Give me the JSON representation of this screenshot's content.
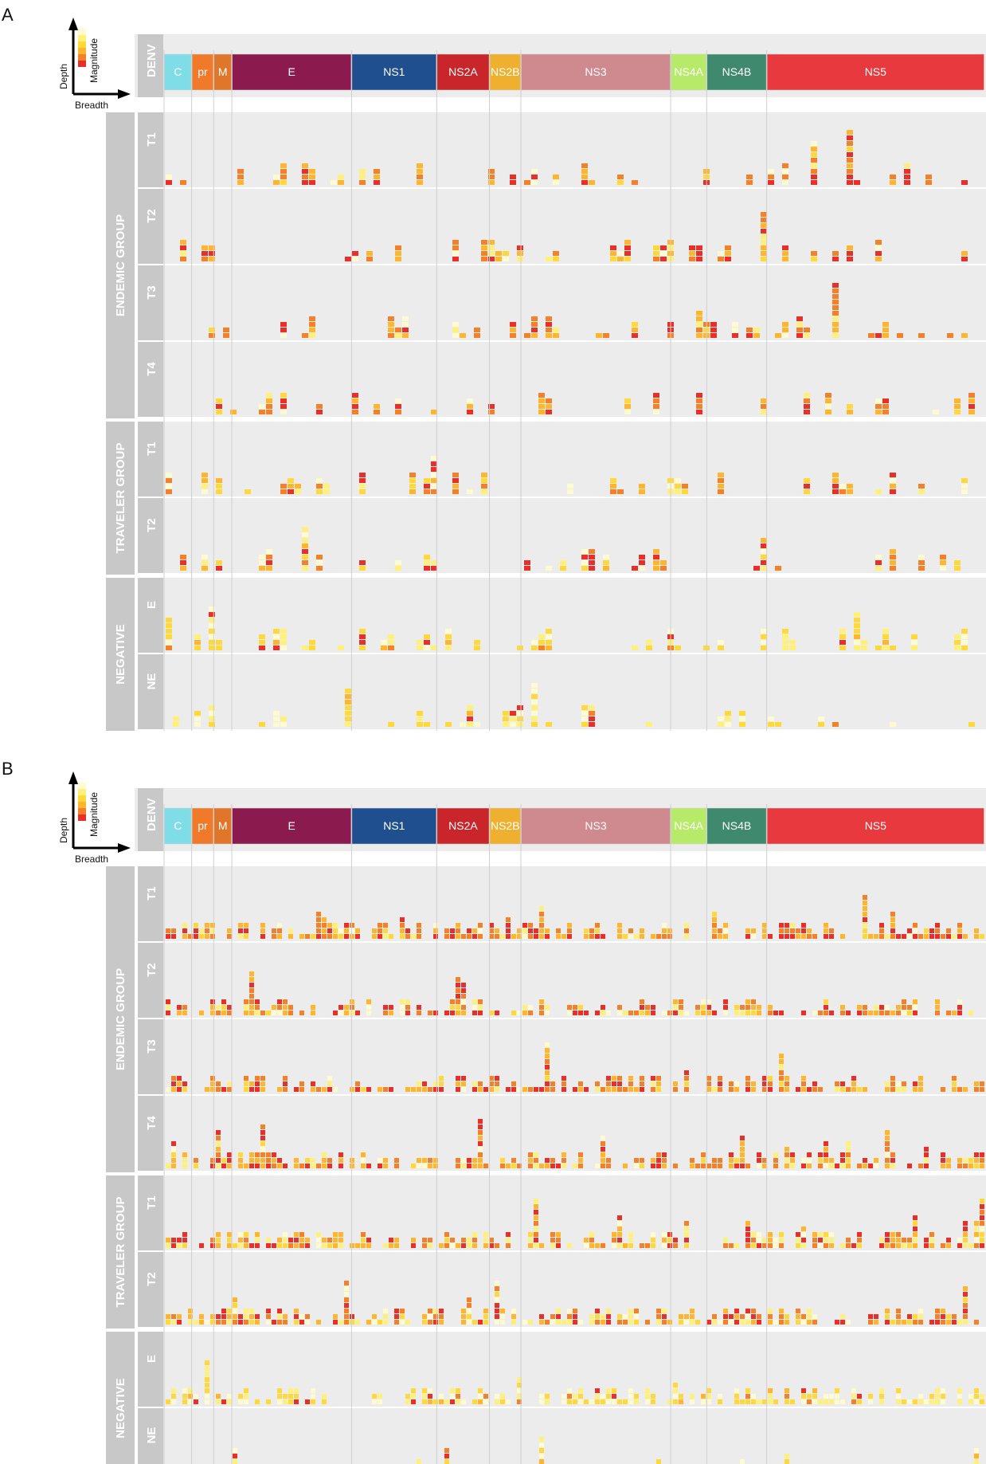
{
  "panels": [
    {
      "letter": "A",
      "header_label": "DENV",
      "seed": 11,
      "groups": [
        {
          "label": "ENDEMIC GROUP",
          "rows": [
            "T1",
            "T2",
            "T3",
            "T4"
          ]
        },
        {
          "label": "TRAVELER GROUP",
          "rows": [
            "T1",
            "T2"
          ]
        },
        {
          "label": "NEGATIVE",
          "rows": [
            "E",
            "NE"
          ]
        }
      ]
    },
    {
      "letter": "B",
      "header_label": "DENV",
      "seed": 47,
      "groups": [
        {
          "label": "ENDEMIC GROUP",
          "rows": [
            "T1",
            "T2",
            "T3",
            "T4"
          ]
        },
        {
          "label": "TRAVELER GROUP",
          "rows": [
            "T1",
            "T2"
          ]
        },
        {
          "label": "NEGATIVE",
          "rows": [
            "E",
            "NE"
          ]
        }
      ]
    }
  ],
  "proteins": [
    {
      "name": "C",
      "start": 0,
      "end": 114,
      "color": "#7fdde8"
    },
    {
      "name": "pr",
      "start": 114,
      "end": 205,
      "color": "#f07a2a"
    },
    {
      "name": "M",
      "start": 205,
      "end": 280,
      "color": "#e0762a"
    },
    {
      "name": "E",
      "start": 280,
      "end": 775,
      "color": "#8b1a4f"
    },
    {
      "name": "NS1",
      "start": 775,
      "end": 1127,
      "color": "#1f4f8f"
    },
    {
      "name": "NS2A",
      "start": 1127,
      "end": 1345,
      "color": "#c8262b"
    },
    {
      "name": "NS2B",
      "start": 1345,
      "end": 1475,
      "color": "#eeb02e"
    },
    {
      "name": "NS3",
      "start": 1475,
      "end": 2094,
      "color": "#cf8a90"
    },
    {
      "name": "NS4A",
      "start": 2094,
      "end": 2243,
      "color": "#b8ea6a"
    },
    {
      "name": "NS4B",
      "start": 2243,
      "end": 2491,
      "color": "#3f8a6f"
    },
    {
      "name": "NS5",
      "start": 2491,
      "end": 3391,
      "color": "#e83a3e"
    }
  ],
  "legend": {
    "y_label": "Depth",
    "x_label": "Breadth",
    "scale_label": "Magnitude",
    "colors": [
      "#fffbd0",
      "#fff07a",
      "#ffd93a",
      "#ffb52c",
      "#f3812a",
      "#e7302a"
    ]
  },
  "colors": {
    "panel_background": "#ececec",
    "side_bar": "#c8c8c8",
    "divider": "#ffffff"
  }
}
